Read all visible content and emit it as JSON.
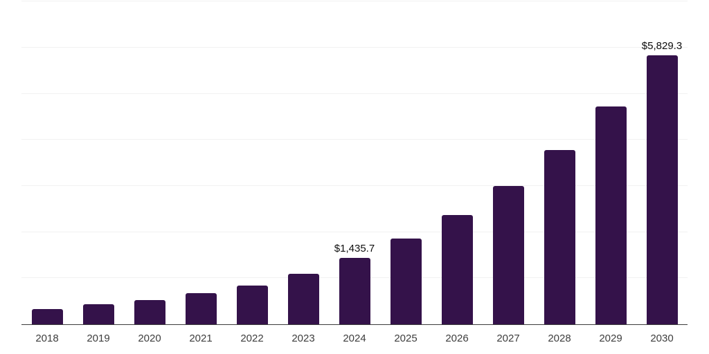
{
  "chart_data": {
    "type": "bar",
    "title": "",
    "xlabel": "",
    "ylabel": "",
    "categories": [
      "2018",
      "2019",
      "2020",
      "2021",
      "2022",
      "2023",
      "2024",
      "2025",
      "2026",
      "2027",
      "2028",
      "2029",
      "2030"
    ],
    "values": [
      330,
      430,
      520,
      680,
      845,
      1100,
      1435.7,
      1865,
      2370,
      3000,
      3775,
      4725,
      5829.3
    ],
    "data_labels": {
      "2024": "$1,435.7",
      "2030": "$5,829.3"
    },
    "ylim": [
      0,
      7000
    ],
    "gridline_step": 1000,
    "grid": "horizontal",
    "y_tick_labels_shown": false,
    "legend": "none",
    "colors": {
      "bar": "#34124a",
      "gridline": "#f1f1f1",
      "axis_line": "#3b3b3b",
      "x_tick_label": "#3d3d3d",
      "data_label": "#0d0d0d",
      "background": "#ffffff"
    }
  }
}
